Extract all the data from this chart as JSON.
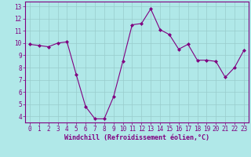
{
  "x": [
    0,
    1,
    2,
    3,
    4,
    5,
    6,
    7,
    8,
    9,
    10,
    11,
    12,
    13,
    14,
    15,
    16,
    17,
    18,
    19,
    20,
    21,
    22,
    23
  ],
  "y": [
    9.9,
    9.8,
    9.7,
    10.0,
    10.1,
    7.4,
    4.8,
    3.8,
    3.8,
    5.6,
    8.5,
    11.5,
    11.6,
    12.8,
    11.1,
    10.7,
    9.5,
    9.9,
    8.6,
    8.6,
    8.5,
    7.2,
    8.0,
    9.4
  ],
  "line_color": "#800080",
  "marker_color": "#800080",
  "bg_color": "#b0e8e8",
  "grid_color": "#99cccc",
  "xlabel": "Windchill (Refroidissement éolien,°C)",
  "ylim": [
    3.5,
    13.4
  ],
  "xlim": [
    -0.5,
    23.5
  ],
  "yticks": [
    4,
    5,
    6,
    7,
    8,
    9,
    10,
    11,
    12,
    13
  ],
  "xticks": [
    0,
    1,
    2,
    3,
    4,
    5,
    6,
    7,
    8,
    9,
    10,
    11,
    12,
    13,
    14,
    15,
    16,
    17,
    18,
    19,
    20,
    21,
    22,
    23
  ],
  "tick_fontsize": 5.5,
  "xlabel_fontsize": 6.0,
  "border_color": "#800080"
}
